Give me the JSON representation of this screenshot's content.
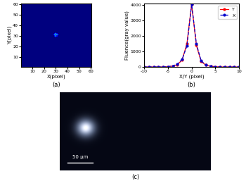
{
  "chart_data": [
    {
      "type": "heatmap",
      "caption": "(a)",
      "x_label": "X(pixel)",
      "y_label": "Y(pixel)",
      "xlim": [
        0.5,
        60.5
      ],
      "ylim": [
        0.5,
        60.5
      ],
      "xticks": [
        10,
        20,
        30,
        40,
        50,
        60
      ],
      "yticks": [
        10,
        20,
        30,
        40,
        50,
        60
      ],
      "grid_size": [
        60,
        60
      ],
      "background": 0,
      "clim": [
        0,
        4000
      ],
      "cells": [
        {
          "x": 30,
          "y": 31,
          "value": 4000
        },
        {
          "x": 29,
          "y": 31,
          "value": 1400
        },
        {
          "x": 31,
          "y": 31,
          "value": 1500
        },
        {
          "x": 30,
          "y": 30,
          "value": 1400
        },
        {
          "x": 30,
          "y": 32,
          "value": 1500
        },
        {
          "x": 29,
          "y": 30,
          "value": 500
        },
        {
          "x": 31,
          "y": 30,
          "value": 500
        },
        {
          "x": 29,
          "y": 32,
          "value": 500
        },
        {
          "x": 31,
          "y": 32,
          "value": 500
        },
        {
          "x": 28,
          "y": 31,
          "value": 400
        },
        {
          "x": 32,
          "y": 31,
          "value": 400
        },
        {
          "x": 30,
          "y": 29,
          "value": 400
        },
        {
          "x": 30,
          "y": 33,
          "value": 400
        }
      ]
    },
    {
      "type": "line",
      "caption": "(b)",
      "x_label": "X/Y (pixel)",
      "y_label": "Fluence(gray value)",
      "xlim": [
        -10,
        10
      ],
      "xticks": [
        -10,
        -5,
        0,
        5,
        10
      ],
      "ylim": [
        0,
        4100
      ],
      "yticks": [
        0,
        1000,
        2000,
        3000,
        4000
      ],
      "legend": "upper right",
      "x": [
        -10,
        -9,
        -8,
        -7,
        -6,
        -5,
        -4,
        -3,
        -2,
        -1,
        0,
        1,
        2,
        3,
        4,
        5,
        6,
        7,
        8,
        9,
        10
      ],
      "series": [
        {
          "name": "Y",
          "color": "#ff0000",
          "marker": "o",
          "line_style": "solid",
          "values": [
            0,
            0,
            0,
            0,
            0,
            20,
            60,
            150,
            450,
            1500,
            4050,
            1400,
            350,
            120,
            50,
            20,
            0,
            0,
            0,
            0,
            0
          ]
        },
        {
          "name": "X",
          "color": "#0000cc",
          "marker": "o",
          "line_style": "dashed",
          "values": [
            0,
            0,
            0,
            0,
            0,
            20,
            70,
            180,
            500,
            1350,
            4050,
            1500,
            400,
            130,
            50,
            20,
            0,
            0,
            0,
            0,
            0
          ]
        }
      ]
    },
    {
      "type": "image",
      "caption": "(c)",
      "scale_bar": "50 μm"
    }
  ]
}
